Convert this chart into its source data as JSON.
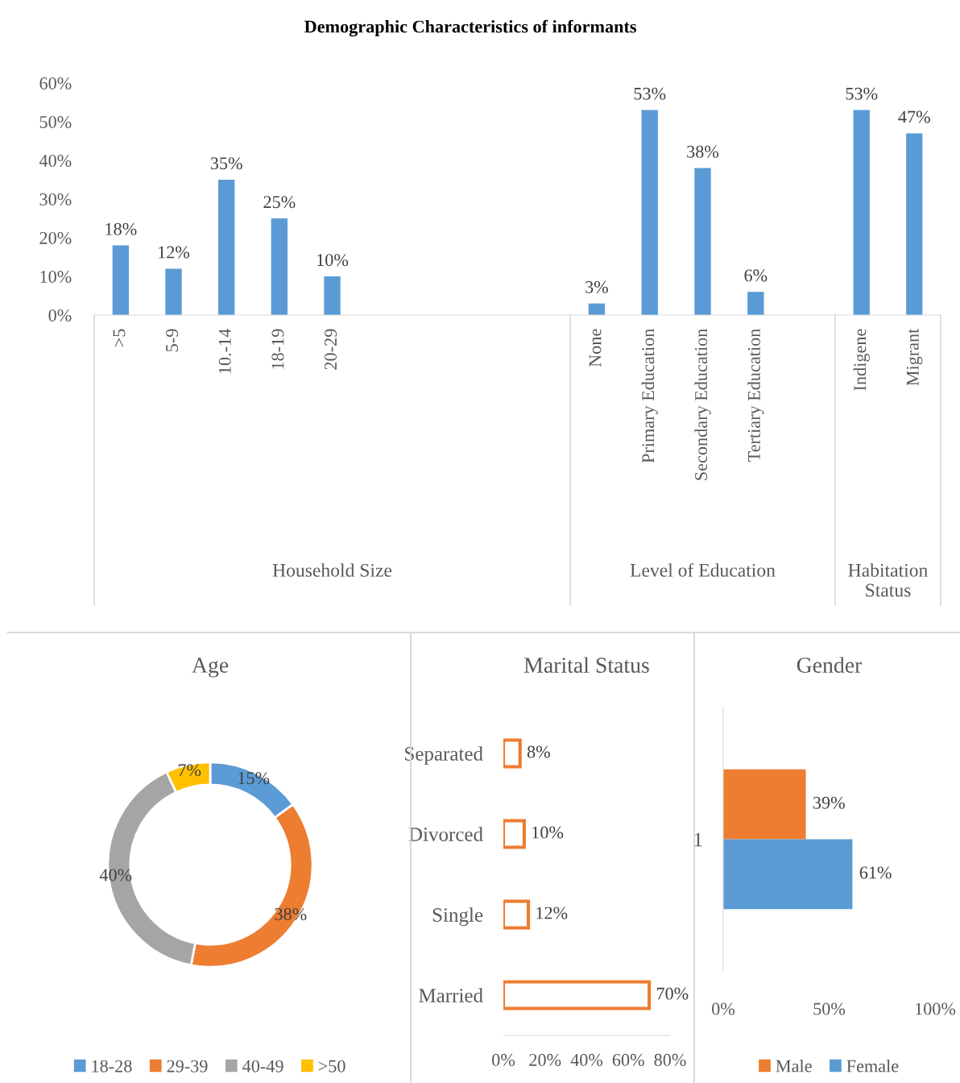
{
  "chart_data": [
    {
      "type": "bar",
      "title": "Demographic Characteristics of informants",
      "xlabel": "Household Size",
      "categories": [
        ">5",
        "5-9",
        "10.-14",
        "18-19",
        "20-29",
        null,
        null,
        null,
        null
      ],
      "values": [
        18,
        12,
        35,
        25,
        10,
        null,
        null,
        null,
        null
      ],
      "color": "#5b9bd5",
      "value_labels": [
        "18%",
        "12%",
        "35%",
        "25%",
        "10%",
        null,
        null,
        null,
        null
      ],
      "ylim": [
        0,
        60
      ],
      "yticks": [
        {
          "value": 0,
          "label": "0%"
        },
        {
          "value": 10,
          "label": "10%"
        },
        {
          "value": 20,
          "label": "20%"
        },
        {
          "value": 30,
          "label": "30%"
        },
        {
          "value": 40,
          "label": "40%"
        },
        {
          "value": 50,
          "label": "50%"
        },
        {
          "value": 60,
          "label": "60%"
        }
      ]
    },
    {
      "type": "bar",
      "xlabel": "Level of Education",
      "categories": [
        "None",
        "Primary Education",
        "Secondary Education",
        "Tertiary Education",
        null
      ],
      "values": [
        3,
        53,
        38,
        6,
        null
      ],
      "color": "#5b9bd5",
      "value_labels": [
        "3%",
        "53%",
        "38%",
        "6%",
        null
      ],
      "ylim": [
        0,
        60
      ],
      "tick_labels": "x"
    },
    {
      "type": "bar",
      "xlabel": "Habitation\nStatus",
      "categories": [
        "Indigene",
        "Migrant"
      ],
      "values": [
        53,
        47
      ],
      "color": "#5b9bd5",
      "value_labels": [
        "53%",
        "47%"
      ],
      "ylim": [
        0,
        60
      ],
      "tick_labels": "x"
    },
    {
      "type": "donut",
      "title": "Age",
      "categories": [
        "18-28",
        "29-39",
        "40-49",
        ">50"
      ],
      "values": [
        15,
        38,
        40,
        7
      ],
      "colors": [
        "#5b9bd5",
        "#ed7d31",
        "#a5a5a5",
        "#ffc000"
      ],
      "value_labels": [
        "15%",
        "38%",
        "40%",
        "7%"
      ],
      "legend": "bottom"
    },
    {
      "type": "bar",
      "title": "Marital Status",
      "orientation": "horizontal",
      "categories": [
        "Separated",
        "Divorced",
        "Single",
        "Married"
      ],
      "values": [
        8,
        10,
        12,
        70
      ],
      "color": "#ed7d31",
      "value_labels": [
        "8%",
        "10%",
        "12%",
        "70%"
      ],
      "xlim": [
        0,
        80
      ],
      "xticks": [
        {
          "value": 0,
          "label": "0%"
        },
        {
          "value": 20,
          "label": "20%"
        },
        {
          "value": 40,
          "label": "40%"
        },
        {
          "value": 60,
          "label": "60%"
        },
        {
          "value": 80,
          "label": "80%"
        }
      ]
    },
    {
      "type": "bar",
      "title": "Gender",
      "orientation": "horizontal",
      "categories": [
        "1"
      ],
      "series": [
        {
          "name": "Male",
          "color": "#ed7d31",
          "values": [
            39
          ],
          "value_labels": [
            "39%"
          ]
        },
        {
          "name": "Female",
          "color": "#5b9bd5",
          "values": [
            61
          ],
          "value_labels": [
            "61%"
          ]
        }
      ],
      "xlim": [
        0,
        100
      ],
      "xticks": [
        {
          "value": 0,
          "label": "0%"
        },
        {
          "value": 50,
          "label": "50%"
        },
        {
          "value": 100,
          "label": "100%"
        }
      ],
      "legend": "bottom"
    }
  ]
}
